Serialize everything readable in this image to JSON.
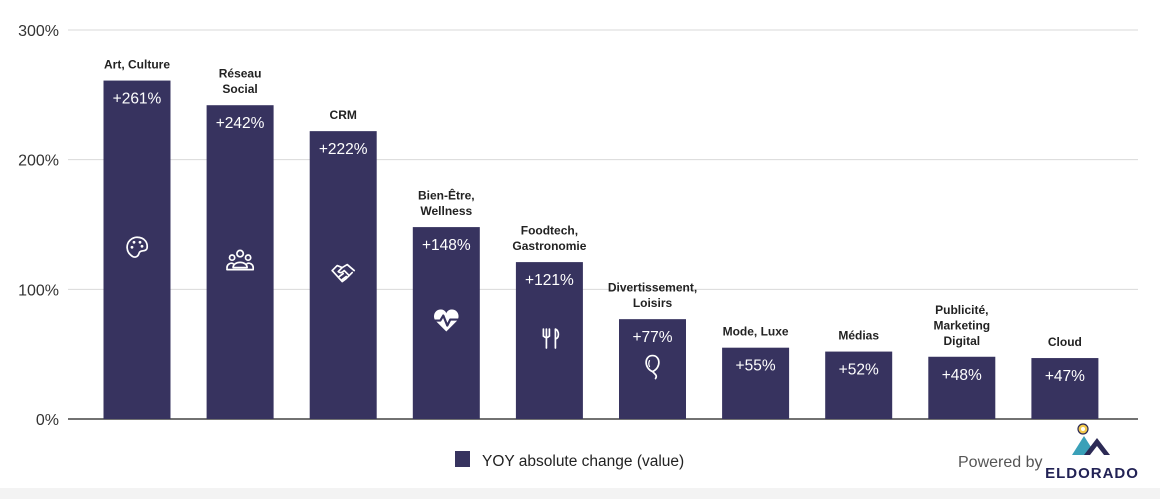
{
  "colors": {
    "bar": "#37335f",
    "grid": "#d9d9d9",
    "axis": "#444444",
    "text": "#222222",
    "tick": "#333333",
    "bar_label": "#ffffff",
    "brand_text": "#222255",
    "logo_dark": "#2c2a55",
    "logo_teal": "#3aa0b8",
    "logo_sun": "#f2c94c",
    "powered_text": "#555555"
  },
  "chart_data": {
    "type": "bar",
    "title": "",
    "xlabel": "",
    "ylabel": "",
    "ylim": [
      0,
      300
    ],
    "yticks": [
      {
        "value": 0,
        "label": "0%"
      },
      {
        "value": 100,
        "label": "100%"
      },
      {
        "value": 200,
        "label": "200%"
      },
      {
        "value": 300,
        "label": "300%"
      }
    ],
    "grid": true,
    "series": [
      {
        "name": "YOY absolute change (value)",
        "values": [
          261,
          242,
          222,
          148,
          121,
          77,
          55,
          52,
          48,
          47
        ]
      }
    ],
    "categories": [
      {
        "lines": [
          "Art, Culture"
        ],
        "value_label": "+261%",
        "icon": "palette-icon"
      },
      {
        "lines": [
          "Réseau",
          "Social"
        ],
        "value_label": "+242%",
        "icon": "people-group-icon"
      },
      {
        "lines": [
          "CRM"
        ],
        "value_label": "+222%",
        "icon": "handshake-icon"
      },
      {
        "lines": [
          "Bien-Être,",
          "Wellness"
        ],
        "value_label": "+148%",
        "icon": "heartbeat-icon"
      },
      {
        "lines": [
          "Foodtech,",
          "Gastronomie"
        ],
        "value_label": "+121%",
        "icon": "fork-knife-icon"
      },
      {
        "lines": [
          "Divertissement,",
          "Loisirs"
        ],
        "value_label": "+77%",
        "icon": "balloon-icon"
      },
      {
        "lines": [
          "Mode, Luxe"
        ],
        "value_label": "+55%",
        "icon": null
      },
      {
        "lines": [
          "Médias"
        ],
        "value_label": "+52%",
        "icon": null
      },
      {
        "lines": [
          "Publicité,",
          "Marketing",
          "Digital"
        ],
        "value_label": "+48%",
        "icon": null
      },
      {
        "lines": [
          "Cloud"
        ],
        "value_label": "+47%",
        "icon": null
      }
    ],
    "legend": {
      "label": "YOY absolute change (value)",
      "placement": "bottom-center"
    }
  },
  "footer": {
    "powered_by": "Powered by",
    "brand": "ELDORADO",
    "logo_icon": "eldorado-mountain-logo-icon"
  }
}
